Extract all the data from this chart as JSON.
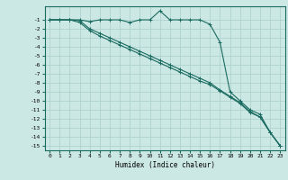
{
  "xlabel": "Humidex (Indice chaleur)",
  "ylabel": "",
  "bg_color": "#cce8e4",
  "grid_color": "#aacfcb",
  "line_color": "#1a6b60",
  "x_values": [
    0,
    1,
    2,
    3,
    4,
    5,
    6,
    7,
    8,
    9,
    10,
    11,
    12,
    13,
    14,
    15,
    16,
    17,
    18,
    19,
    20,
    21,
    22,
    23
  ],
  "line1": [
    -1,
    -1,
    -1,
    -1,
    -1.2,
    -1,
    -1,
    -1,
    -1.3,
    -1,
    -1,
    0,
    -1,
    -1,
    -1,
    -1,
    -1.5,
    -3.5,
    -9,
    -10,
    -11,
    -11.5,
    -13.5,
    -15
  ],
  "line2": [
    -1,
    -1,
    -1,
    -1.1,
    -2,
    -2.5,
    -3,
    -3.5,
    -4,
    -4.5,
    -5,
    -5.5,
    -6,
    -6.5,
    -7,
    -7.5,
    -8,
    -8.8,
    -9.5,
    -10.2,
    -11.2,
    -11.8,
    -13.5,
    -15
  ],
  "line3": [
    -1,
    -1,
    -1,
    -1.3,
    -2.2,
    -2.8,
    -3.3,
    -3.8,
    -4.3,
    -4.8,
    -5.3,
    -5.8,
    -6.3,
    -6.8,
    -7.3,
    -7.8,
    -8.2,
    -8.9,
    -9.6,
    -10.3,
    -11.3,
    -11.8,
    -13.5,
    -15
  ],
  "ylim": [
    -15.5,
    0.5
  ],
  "xlim": [
    -0.5,
    23.5
  ],
  "yticks": [
    -1,
    -2,
    -3,
    -4,
    -5,
    -6,
    -7,
    -8,
    -9,
    -10,
    -11,
    -12,
    -13,
    -14,
    -15
  ],
  "xticks": [
    0,
    1,
    2,
    3,
    4,
    5,
    6,
    7,
    8,
    9,
    10,
    11,
    12,
    13,
    14,
    15,
    16,
    17,
    18,
    19,
    20,
    21,
    22,
    23
  ]
}
